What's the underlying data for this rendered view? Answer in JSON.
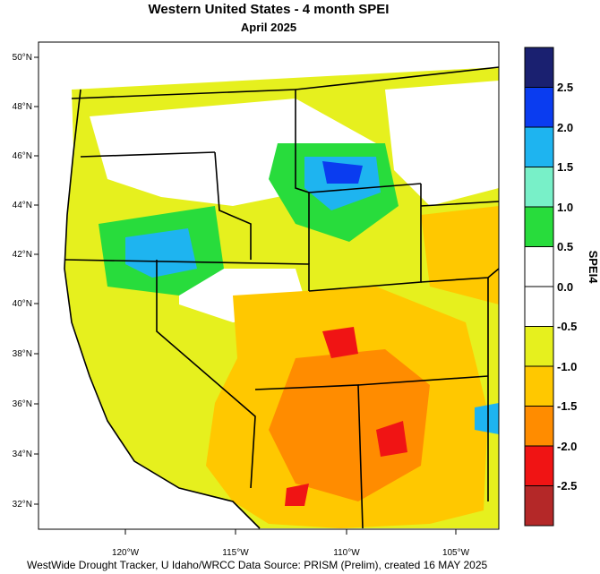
{
  "title": "Western United States - 4 month SPEI",
  "subtitle": "April 2025",
  "credit": "WestWide Drought Tracker, U Idaho/WRCC Data Source: PRISM (Prelim), created 16 MAY 2025",
  "map": {
    "lat_labels": [
      "50°N",
      "48°N",
      "46°N",
      "44°N",
      "42°N",
      "40°N",
      "38°N",
      "36°N",
      "34°N",
      "32°N"
    ],
    "lon_labels": [
      "120°W",
      "115°W",
      "110°W",
      "105°W"
    ]
  },
  "colorbar": {
    "title": "SPEI4",
    "labels": [
      "2.5",
      "2.0",
      "1.5",
      "1.0",
      "0.5",
      "0.0",
      "-0.5",
      "-1.0",
      "-1.5",
      "-2.0",
      "-2.5"
    ],
    "colors": [
      "#1a2070",
      "#0a3cf0",
      "#1eb4f0",
      "#78f0c8",
      "#28dc3c",
      "#ffffff",
      "#ffffff",
      "#e6f01e",
      "#ffc800",
      "#ff8c00",
      "#f01414",
      "#b42828"
    ]
  }
}
